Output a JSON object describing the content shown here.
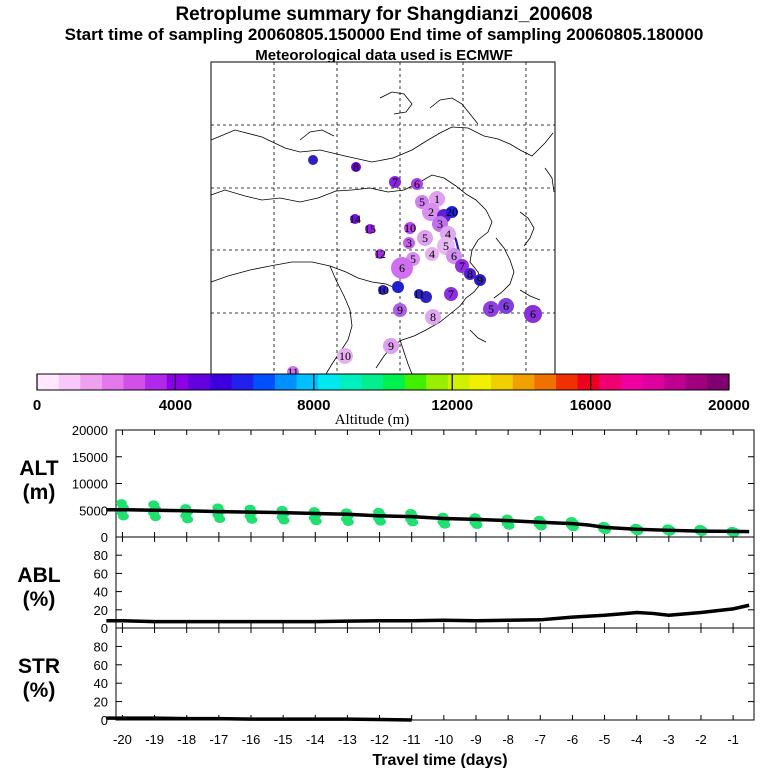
{
  "header": {
    "title": "Retroplume summary for Shangdianzi_200608",
    "sampling": "Start time of sampling 20060805.150000     End time of sampling 20060805.180000",
    "met": "Meteorological data used is ECMWF"
  },
  "colorbar": {
    "label": "Altitude (m)",
    "ticks": [
      "0",
      "4000",
      "8000",
      "12000",
      "16000",
      "20000"
    ],
    "colors": [
      "#ffe8ff",
      "#f8c8f8",
      "#f0a0f0",
      "#e478ec",
      "#d050e8",
      "#b028e8",
      "#8c00e8",
      "#6400e0",
      "#3c00e0",
      "#2020f0",
      "#0050ff",
      "#0090ff",
      "#00c0ff",
      "#00e8f0",
      "#00f0c0",
      "#00f090",
      "#00f050",
      "#40f000",
      "#98f000",
      "#d0f000",
      "#f0f000",
      "#f0d000",
      "#f0a000",
      "#f07000",
      "#f03000",
      "#f00020",
      "#f00070",
      "#f000a0",
      "#e000a0",
      "#c00090",
      "#a00080",
      "#800070"
    ]
  },
  "map": {
    "plume_labels": [
      "20",
      "1",
      "2",
      "3",
      "4",
      "5",
      "6",
      "7",
      "8",
      "9",
      "10",
      "11",
      "12",
      "13",
      "14",
      "15"
    ]
  },
  "chart_data": [
    {
      "type": "line",
      "name": "ALT",
      "ylabel": "ALT\n(m)",
      "ylabel_lines": [
        "ALT",
        "(m)"
      ],
      "ylim": [
        0,
        20000
      ],
      "yticks": [
        "20000",
        "15000",
        "10000",
        "5000",
        "0"
      ],
      "x": [
        -20.5,
        -20,
        -19,
        -18,
        -17,
        -16,
        -15,
        -14,
        -13,
        -12,
        -11,
        -10,
        -9,
        -8,
        -7,
        -6,
        -5.5,
        -5,
        -4,
        -3,
        -2,
        -1,
        -0.5
      ],
      "y": [
        5100,
        5100,
        5000,
        4900,
        4750,
        4650,
        4550,
        4400,
        4250,
        3950,
        3800,
        3450,
        3300,
        3050,
        2750,
        2500,
        2250,
        1800,
        1450,
        1250,
        1100,
        1050,
        1000
      ],
      "cluster_x": [
        -20,
        -19,
        -18,
        -17,
        -16,
        -15,
        -14,
        -13,
        -12,
        -11,
        -10,
        -9,
        -8,
        -7,
        -6,
        -5,
        -4,
        -3,
        -2,
        -1
      ],
      "cluster_y": [
        5500,
        5300,
        4700,
        4800,
        4600,
        4400,
        4200,
        4000,
        4100,
        3900,
        3300,
        3200,
        3000,
        2800,
        2600,
        1800,
        1500,
        1400,
        1300,
        1000
      ]
    },
    {
      "type": "line",
      "name": "ABL",
      "ylabel": "ABL\n(%)",
      "ylabel_lines": [
        "ABL",
        "(%)"
      ],
      "ylim": [
        0,
        100
      ],
      "yticks": [
        "80",
        "60",
        "40",
        "20",
        "0"
      ],
      "x": [
        -20.5,
        -20,
        -19,
        -18,
        -17,
        -16,
        -15,
        -14,
        -13,
        -12,
        -11,
        -10,
        -9,
        -8,
        -7,
        -6,
        -5,
        -4,
        -3.5,
        -3,
        -2,
        -1,
        -0.5
      ],
      "y": [
        8,
        8,
        7,
        7,
        7,
        7,
        7,
        7,
        7.5,
        8,
        8,
        8.5,
        8,
        8.5,
        9,
        12,
        14,
        17,
        16,
        14,
        17,
        21,
        25
      ]
    },
    {
      "type": "line",
      "name": "STR",
      "ylabel": "STR\n(%)",
      "ylabel_lines": [
        "STR",
        "(%)"
      ],
      "ylim": [
        0,
        100
      ],
      "yticks": [
        "80",
        "60",
        "40",
        "20",
        "0"
      ],
      "x": [
        -20.5,
        -20,
        -19,
        -18,
        -17,
        -16,
        -15,
        -14,
        -13,
        -12,
        -11
      ],
      "y": [
        2,
        2,
        2,
        1.5,
        1.5,
        1,
        1,
        1,
        1,
        0.5,
        0
      ]
    }
  ],
  "xaxis": {
    "label": "Travel time (days)",
    "ticks": [
      "-20",
      "-19",
      "-18",
      "-17",
      "-16",
      "-15",
      "-14",
      "-13",
      "-12",
      "-11",
      "-10",
      "-9",
      "-8",
      "-7",
      "-6",
      "-5",
      "-4",
      "-3",
      "-2",
      "-1"
    ]
  }
}
